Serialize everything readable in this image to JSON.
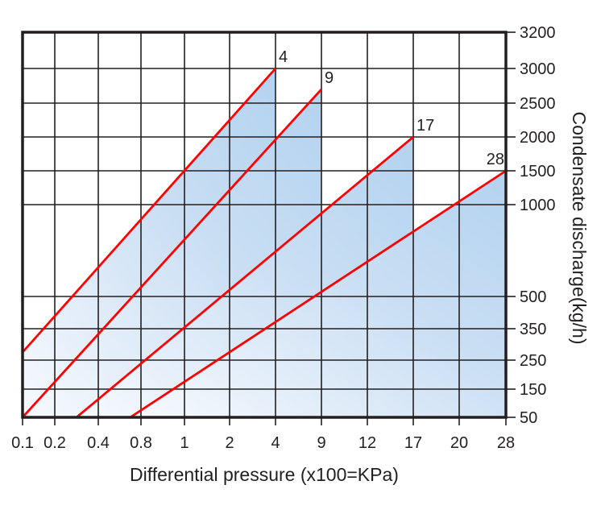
{
  "chart_data": {
    "type": "line",
    "title": "",
    "xlabel": "Differential pressure (x100=KPa)",
    "ylabel": "Condensate discharge(kg/h)",
    "x_ticks": [
      0.1,
      0.2,
      0.4,
      0.8,
      1,
      2,
      4,
      9,
      12,
      17,
      20,
      28
    ],
    "y_ticks": [
      50,
      150,
      250,
      350,
      500,
      1000,
      1500,
      2000,
      2500,
      3000,
      3200
    ],
    "y_gridlines": [
      150,
      250,
      350,
      500,
      1000,
      1500,
      2000,
      2500,
      3000
    ],
    "xlim": [
      0.1,
      28
    ],
    "ylim": [
      50,
      3200
    ],
    "grid": true,
    "y_axis_side": "right",
    "area_fill": true,
    "colors": {
      "line": "#ff0000",
      "fill_top": "#b7d5f0",
      "fill_bottom": "#f7fafe",
      "grid": "#231f20"
    },
    "series": [
      {
        "name": "4",
        "points": [
          [
            0.1,
            275
          ],
          [
            4,
            3000
          ]
        ]
      },
      {
        "name": "9",
        "points": [
          [
            0.1,
            50
          ],
          [
            9,
            2700
          ]
        ]
      },
      {
        "name": "17",
        "points": [
          [
            0.3,
            50
          ],
          [
            17,
            2000
          ]
        ]
      },
      {
        "name": "28",
        "points": [
          [
            0.7,
            50
          ],
          [
            28,
            1500
          ]
        ]
      }
    ]
  }
}
